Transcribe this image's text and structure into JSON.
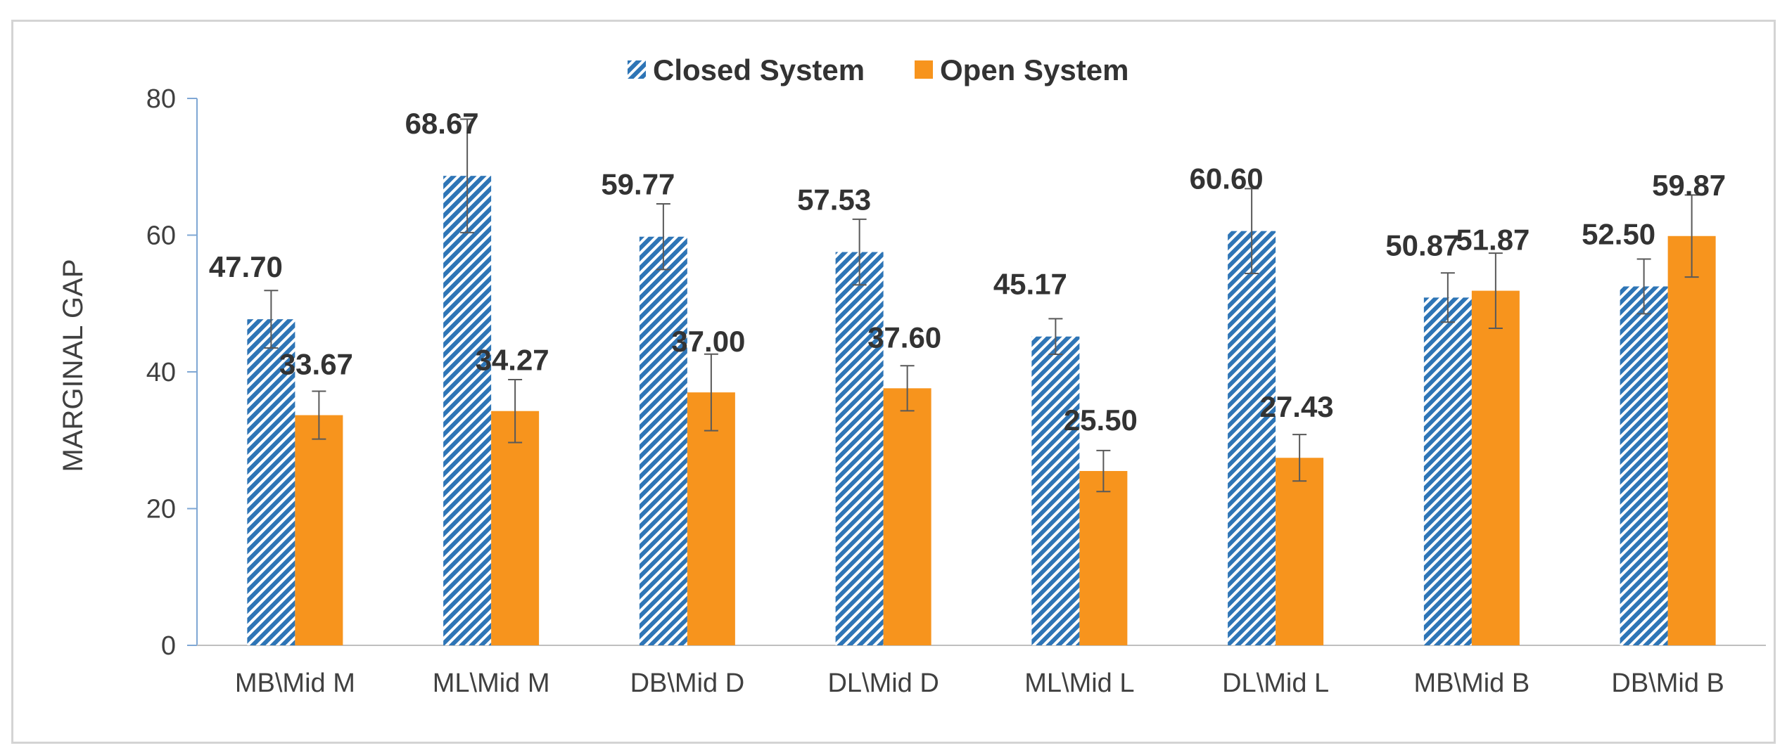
{
  "chart_data": {
    "type": "bar",
    "title": "",
    "xlabel": "",
    "ylabel": "MARGINAL GAP",
    "ylim": [
      0,
      80
    ],
    "yticks": [
      0,
      20,
      40,
      60,
      80
    ],
    "grid": false,
    "legend_position": "top-center",
    "categories": [
      "MB\\Mid M",
      "ML\\Mid M",
      "DB\\Mid D",
      "DL\\Mid D",
      "ML\\Mid L",
      "DL\\Mid L",
      "MB\\Mid B",
      "DB\\Mid B"
    ],
    "series": [
      {
        "name": "Closed System",
        "color": "#2e75b6",
        "pattern": "diagonal-hatch",
        "values": [
          47.7,
          68.67,
          59.77,
          57.53,
          45.17,
          60.6,
          50.87,
          52.5
        ],
        "labels": [
          "47.70",
          "68.67",
          "59.77",
          "57.53",
          "45.17",
          "60.60",
          "50.87",
          "52.50"
        ],
        "errors": [
          4.2,
          8.3,
          4.8,
          4.8,
          2.6,
          6.2,
          3.6,
          4.0
        ]
      },
      {
        "name": "Open System",
        "color": "#f7941d",
        "pattern": "solid",
        "values": [
          33.67,
          34.27,
          37.0,
          37.6,
          25.5,
          27.43,
          51.87,
          59.87
        ],
        "labels": [
          "33.67",
          "34.27",
          "37.00",
          "37.60",
          "25.50",
          "27.43",
          "51.87",
          "59.87"
        ],
        "errors": [
          3.5,
          4.6,
          5.6,
          3.3,
          3.0,
          3.4,
          5.5,
          6.0
        ]
      }
    ]
  }
}
